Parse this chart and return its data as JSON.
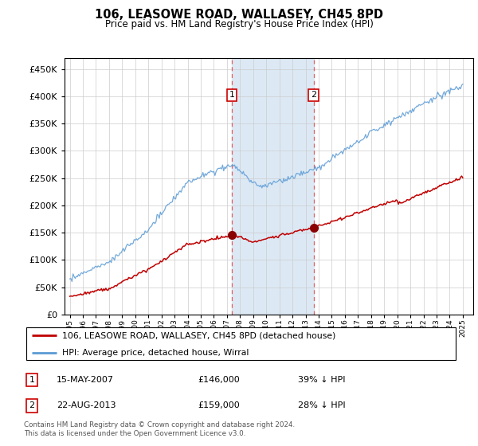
{
  "title": "106, LEASOWE ROAD, WALLASEY, CH45 8PD",
  "subtitle": "Price paid vs. HM Land Registry's House Price Index (HPI)",
  "legend_line1": "106, LEASOWE ROAD, WALLASEY, CH45 8PD (detached house)",
  "legend_line2": "HPI: Average price, detached house, Wirral",
  "transaction1_date": "15-MAY-2007",
  "transaction1_price": "£146,000",
  "transaction1_hpi": "39% ↓ HPI",
  "transaction2_date": "22-AUG-2013",
  "transaction2_price": "£159,000",
  "transaction2_hpi": "28% ↓ HPI",
  "footer": "Contains HM Land Registry data © Crown copyright and database right 2024.\nThis data is licensed under the Open Government Licence v3.0.",
  "hpi_color": "#5b9bd5",
  "price_color": "#c00000",
  "marker_color": "#8b0000",
  "shade_color": "#dce9f5",
  "transaction1_x": 2007.37,
  "transaction2_x": 2013.62,
  "transaction1_y": 146000,
  "transaction2_y": 159000,
  "ylim_min": 0,
  "ylim_max": 470000,
  "xlim_min": 1994.6,
  "xlim_max": 2025.8,
  "yticks": [
    0,
    50000,
    100000,
    150000,
    200000,
    250000,
    300000,
    350000,
    400000,
    450000
  ],
  "xticks": [
    1995,
    1996,
    1997,
    1998,
    1999,
    2000,
    2001,
    2002,
    2003,
    2004,
    2005,
    2006,
    2007,
    2008,
    2009,
    2010,
    2011,
    2012,
    2013,
    2014,
    2015,
    2016,
    2017,
    2018,
    2019,
    2020,
    2021,
    2022,
    2023,
    2024,
    2025
  ]
}
